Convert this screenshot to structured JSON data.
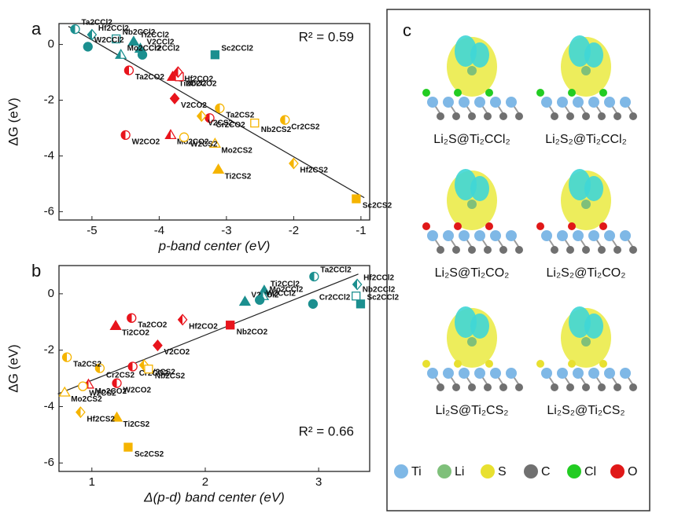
{
  "chart_data": [
    {
      "type": "scatter",
      "panel": "a",
      "xlabel": "p-band center (eV)",
      "ylabel": "ΔG (eV)",
      "annotation": "R² = 0.59",
      "xlim": [
        -5.49,
        -0.87
      ],
      "ylim": [
        -6.3,
        0.75
      ],
      "xticks": [
        -5,
        -4,
        -3,
        -2,
        -1
      ],
      "yticks": [
        0,
        -2,
        -4,
        -6
      ],
      "fit": {
        "x": [
          -5.35,
          -0.95
        ],
        "y": [
          0.65,
          -5.5
        ]
      },
      "series": [
        {
          "name": "CCl2",
          "color": "#1b8f8f",
          "labels": [
            "Sc2CCl2",
            "Ti2CCl2",
            "V2CCl2",
            "Cr2CCl2",
            "Nb2CCl2",
            "Mo2CCl2",
            "Hf2CCl2",
            "Ta2CCl2",
            "W2CCl2"
          ],
          "markers": [
            "square",
            "triangle",
            "triangle",
            "circle",
            "square",
            "triangle",
            "diamond",
            "circle",
            "circle"
          ],
          "fills": [
            "full",
            "full",
            "full",
            "full",
            "open",
            "half",
            "half",
            "half",
            "full"
          ],
          "x": [
            -3.17,
            -4.38,
            -4.28,
            -4.25,
            -4.64,
            -4.57,
            -5.0,
            -5.25,
            -5.06
          ],
          "y": [
            -0.37,
            0.1,
            -0.15,
            -0.37,
            0.2,
            -0.37,
            0.35,
            0.55,
            -0.08
          ]
        },
        {
          "name": "CO2",
          "color": "#e8141c",
          "labels": [
            "Ti2CO2",
            "V2CO2",
            "Cr2CO2",
            "Nb2CO2",
            "Mo2CO2",
            "Hf2CO2",
            "Ta2CO2",
            "W2CO2"
          ],
          "markers": [
            "triangle",
            "diamond",
            "circle",
            "square",
            "triangle",
            "diamond",
            "circle",
            "circle"
          ],
          "fills": [
            "full",
            "full",
            "half",
            "open",
            "half",
            "half",
            "half",
            "half"
          ],
          "x": [
            -3.8,
            -3.77,
            -3.25,
            -3.7,
            -3.83,
            -3.72,
            -4.45,
            -4.5
          ],
          "y": [
            -1.16,
            -1.94,
            -2.64,
            -1.16,
            -3.25,
            -0.99,
            -0.93,
            -3.25
          ]
        },
        {
          "name": "CS2",
          "color": "#f5b400",
          "labels": [
            "Sc2CS2",
            "Ti2CS2",
            "V2CS2",
            "Cr2CS2",
            "Nb2CS2",
            "Mo2CS2",
            "Hf2CS2",
            "Ta2CS2",
            "W2CS2"
          ],
          "markers": [
            "square",
            "triangle",
            "diamond",
            "circle",
            "square",
            "triangle",
            "diamond",
            "circle",
            "circle"
          ],
          "fills": [
            "full",
            "full",
            "half",
            "half",
            "open",
            "open",
            "half",
            "half",
            "open"
          ],
          "x": [
            -1.07,
            -3.12,
            -3.37,
            -2.13,
            -2.58,
            -3.17,
            -2.0,
            -3.1,
            -3.63
          ],
          "y": [
            -5.54,
            -4.49,
            -2.57,
            -2.71,
            -2.82,
            -3.56,
            -4.27,
            -2.29,
            -3.33
          ]
        }
      ]
    },
    {
      "type": "scatter",
      "panel": "b",
      "xlabel": "Δ(p-d) band center (eV)",
      "ylabel": "ΔG (eV)",
      "annotation": "R² = 0.66",
      "xlim": [
        0.71,
        3.45
      ],
      "ylim": [
        -6.3,
        1.0
      ],
      "xticks": [
        1,
        2,
        3
      ],
      "yticks": [
        0,
        -2,
        -4,
        -6
      ],
      "fit": {
        "x": [
          0.7,
          3.35
        ],
        "y": [
          -3.55,
          0.7
        ]
      },
      "series": [
        {
          "name": "CCl2",
          "color": "#1b8f8f",
          "labels": [
            "Sc2CCl2",
            "Ti2CCl2",
            "V2CCl2",
            "Cr2CCl2",
            "Nb2CCl2",
            "Mo2CCl2",
            "Hf2CCl2",
            "Ta2CCl2",
            "W2CCl2"
          ],
          "markers": [
            "square",
            "triangle",
            "triangle",
            "circle",
            "square",
            "triangle",
            "diamond",
            "circle",
            "circle"
          ],
          "fills": [
            "full",
            "full",
            "full",
            "full",
            "open",
            "half",
            "half",
            "half",
            "full"
          ],
          "x": [
            3.37,
            2.52,
            2.35,
            2.95,
            3.33,
            2.51,
            3.34,
            2.96,
            2.48
          ],
          "y": [
            -0.36,
            0.11,
            -0.28,
            -0.36,
            -0.08,
            -0.08,
            0.33,
            0.61,
            -0.22
          ]
        },
        {
          "name": "CO2",
          "color": "#e8141c",
          "labels": [
            "Ti2CO2",
            "V2CO2",
            "Cr2CO2",
            "Nb2CO2",
            "Mo2CO2",
            "Hf2CO2",
            "Ta2CO2",
            "W2CO2"
          ],
          "markers": [
            "triangle",
            "diamond",
            "circle",
            "square",
            "triangle",
            "diamond",
            "circle",
            "circle"
          ],
          "fills": [
            "full",
            "full",
            "half",
            "full",
            "half",
            "half",
            "half",
            "half"
          ],
          "x": [
            1.21,
            1.58,
            1.36,
            2.22,
            0.97,
            1.8,
            1.35,
            1.22
          ],
          "y": [
            -1.14,
            -1.83,
            -2.58,
            -1.11,
            -3.22,
            -0.92,
            -0.86,
            -3.17
          ]
        },
        {
          "name": "CS2",
          "color": "#f5b400",
          "labels": [
            "Sc2CS2",
            "Ti2CS2",
            "V2CS2",
            "Cr2CS2",
            "Nb2CS2",
            "Mo2CS2",
            "Hf2CS2",
            "Ta2CS2",
            "W2CS2"
          ],
          "markers": [
            "square",
            "triangle",
            "diamond",
            "circle",
            "square",
            "triangle",
            "diamond",
            "circle",
            "circle"
          ],
          "fills": [
            "full",
            "full",
            "half",
            "half",
            "open",
            "open",
            "half",
            "half",
            "open"
          ],
          "x": [
            1.32,
            1.22,
            1.46,
            1.07,
            1.5,
            0.76,
            0.9,
            0.78,
            0.92
          ],
          "y": [
            -5.44,
            -4.39,
            -2.53,
            -2.64,
            -2.67,
            -3.5,
            -4.2,
            -2.25,
            -3.28
          ]
        }
      ]
    }
  ],
  "panel_c": {
    "label": "c",
    "captions": [
      "Li₂S@Ti₂CCl₂",
      "Li₂S₂@Ti₂CCl₂",
      "Li₂S@Ti₂CO₂",
      "Li₂S₂@Ti₂CO₂",
      "Li₂S@Ti₂CS₂",
      "Li₂S₂@Ti₂CS₂"
    ],
    "legend": [
      {
        "name": "Ti",
        "color": "#7fb8e6"
      },
      {
        "name": "Li",
        "color": "#7fc07a"
      },
      {
        "name": "S",
        "color": "#e8e030"
      },
      {
        "name": "C",
        "color": "#707070"
      },
      {
        "name": "Cl",
        "color": "#22cc22"
      },
      {
        "name": "O",
        "color": "#e01818"
      }
    ]
  }
}
